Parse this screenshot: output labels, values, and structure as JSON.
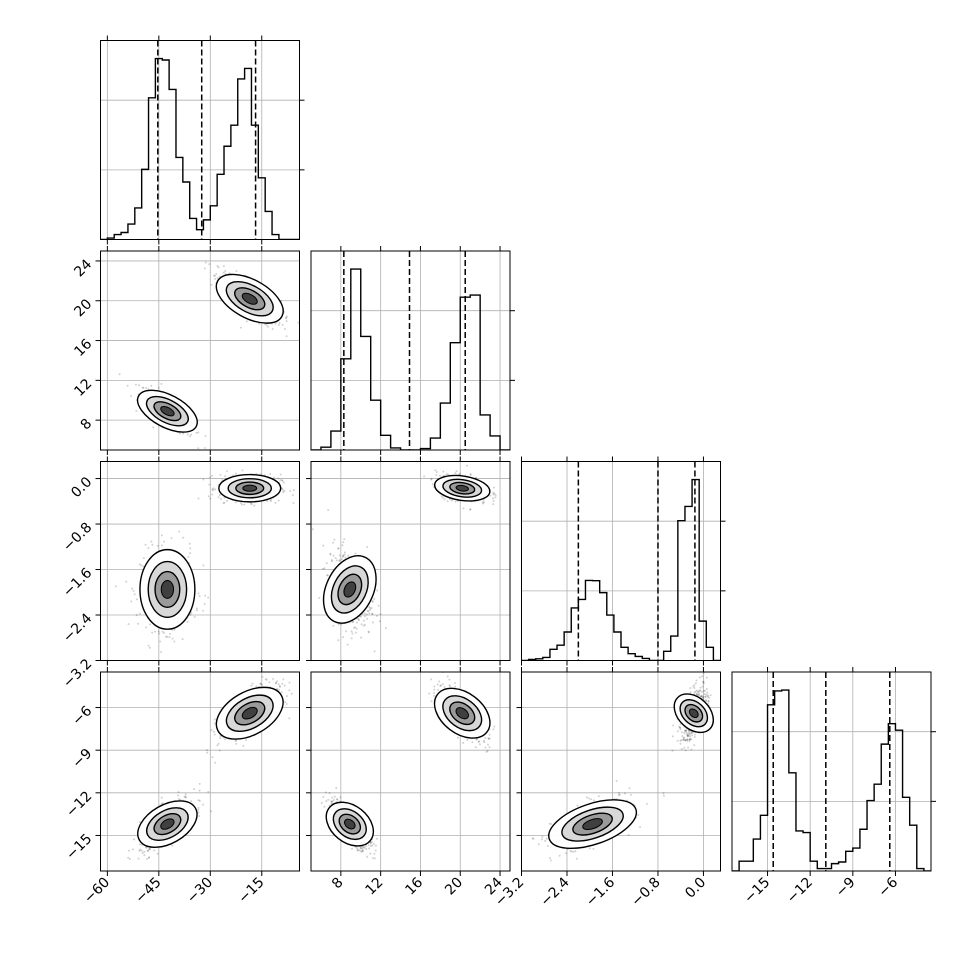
{
  "chart_data": {
    "type": "corner",
    "grid": true,
    "quantile_lines": "dashed",
    "parameters": [
      {
        "range": [
          -62,
          -4
        ],
        "ticks": [
          -60,
          -45,
          -30,
          -15
        ],
        "tick_labels": [
          "−60",
          "−45",
          "−30",
          "−15"
        ],
        "quantiles": [
          -45.3,
          -32.5,
          -16.8
        ],
        "histogram": {
          "edges": [
            -62,
            -60,
            -58,
            -56,
            -54,
            -52,
            -50,
            -48,
            -46,
            -44,
            -42,
            -40,
            -38,
            -36,
            -34,
            -32,
            -30,
            -28,
            -26,
            -24,
            -22,
            -20,
            -18,
            -16,
            -14,
            -12,
            -10,
            -8,
            -6,
            -4
          ],
          "counts": [
            0,
            2,
            7,
            10,
            22,
            45,
            100,
            202,
            258,
            256,
            214,
            117,
            82,
            30,
            14,
            28,
            48,
            93,
            133,
            163,
            229,
            244,
            163,
            88,
            40,
            7,
            0,
            0,
            0
          ]
        },
        "modes": [
          {
            "center": -42.5,
            "spread": 4.0
          },
          {
            "center": -18.5,
            "spread": 4.5
          }
        ]
      },
      {
        "range": [
          5,
          25
        ],
        "ticks": [
          8,
          12,
          16,
          20,
          24
        ],
        "tick_labels": [
          "8",
          "12",
          "16",
          "20",
          "24"
        ],
        "quantiles": [
          8.3,
          14.9,
          20.5
        ],
        "histogram": {
          "edges": [
            5,
            6,
            7,
            8,
            9,
            10,
            11,
            12,
            13,
            14,
            15,
            16,
            17,
            18,
            19,
            20,
            21,
            22,
            23,
            24,
            25
          ],
          "counts": [
            0,
            4,
            27,
            130,
            258,
            162,
            71,
            21,
            3,
            0,
            0,
            2,
            17,
            67,
            153,
            218,
            221,
            50,
            20,
            0
          ]
        },
        "modes": [
          {
            "center": 8.9,
            "spread": 1.1
          },
          {
            "center": 20.2,
            "spread": 1.3
          }
        ]
      },
      {
        "range": [
          -3.2,
          0.3
        ],
        "ticks": [
          -3.2,
          -2.4,
          -1.6,
          -0.8,
          0.0
        ],
        "tick_labels": [
          "−3.2",
          "−2.4",
          "−1.6",
          "−0.8",
          "0.0"
        ],
        "quantiles": [
          -2.2,
          -0.8,
          -0.15
        ],
        "histogram": {
          "edges": [
            -3.2,
            -3.075,
            -2.95,
            -2.825,
            -2.7,
            -2.575,
            -2.45,
            -2.325,
            -2.2,
            -2.075,
            -1.95,
            -1.825,
            -1.7,
            -1.575,
            -1.45,
            -1.325,
            -1.2,
            -1.075,
            -0.95,
            -0.825,
            -0.7,
            -0.575,
            -0.45,
            -0.325,
            -0.2,
            -0.075,
            0.05,
            0.175,
            0.3
          ],
          "counts": [
            0,
            3,
            5,
            9,
            33,
            45,
            84,
            155,
            180,
            236,
            235,
            200,
            134,
            84,
            39,
            20,
            12,
            6,
            0,
            0,
            27,
            72,
            412,
            454,
            533,
            116,
            39,
            0
          ]
        },
        "modes": [
          {
            "center": -1.95,
            "spread": 0.35
          },
          {
            "center": -0.17,
            "spread": 0.12
          }
        ]
      },
      {
        "range": [
          -17.5,
          -3.5
        ],
        "ticks": [
          -15,
          -12,
          -9,
          -6
        ],
        "tick_labels": [
          "−15",
          "−12",
          "−9",
          "−6"
        ],
        "quantiles": [
          -14.6,
          -10.9,
          -6.4
        ],
        "histogram": {
          "edges": [
            -17.5,
            -17,
            -16.5,
            -16,
            -15.5,
            -15,
            -14.5,
            -14,
            -13.5,
            -13,
            -12.5,
            -12,
            -11.5,
            -11,
            -10.5,
            -10,
            -9.5,
            -9,
            -8.5,
            -8,
            -7.5,
            -7,
            -6.5,
            -6,
            -5.5,
            -5,
            -4.5,
            -4,
            -3.5
          ],
          "counts": [
            0,
            12,
            12,
            39,
            68,
            203,
            220,
            221,
            120,
            49,
            47,
            12,
            3,
            3,
            9,
            11,
            24,
            28,
            51,
            86,
            106,
            155,
            180,
            172,
            90,
            56,
            3,
            0
          ]
        },
        "modes": [
          {
            "center": -14.2,
            "spread": 0.9
          },
          {
            "center": -6.4,
            "spread": 1.0
          }
        ]
      }
    ]
  }
}
